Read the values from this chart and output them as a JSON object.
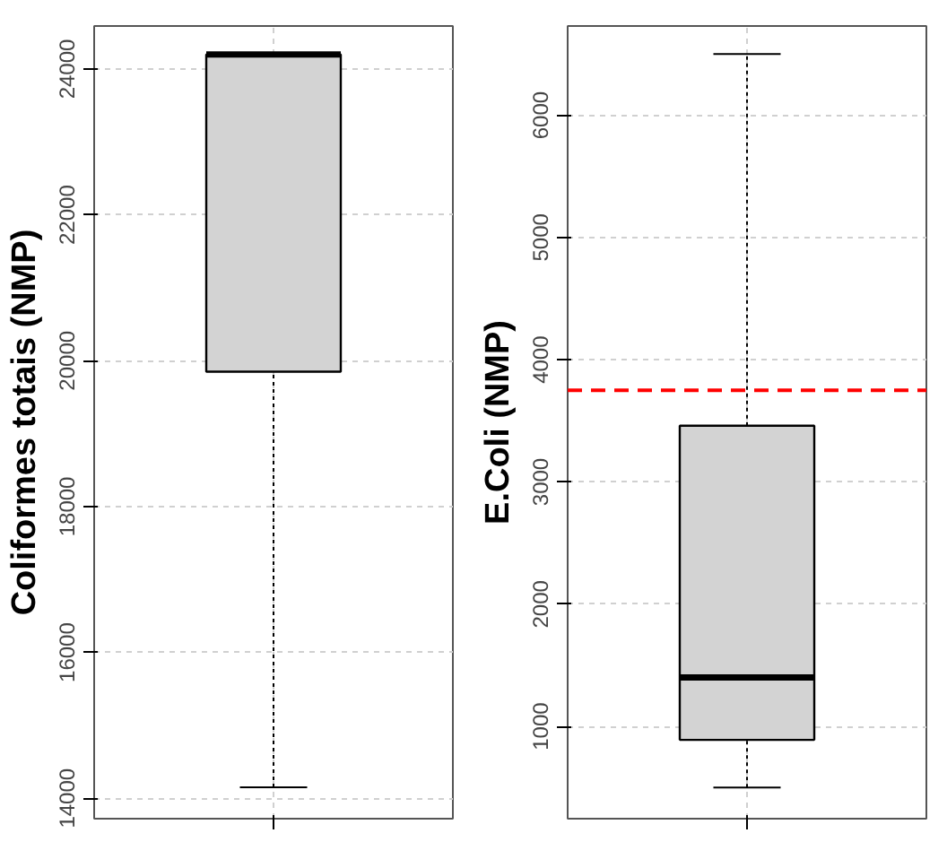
{
  "chart_data": [
    {
      "type": "box",
      "ylabel": "Coliformes totais (NMP)",
      "categories": [
        null
      ],
      "colors": [
        "#d3d3d3"
      ],
      "boxes": [
        {
          "low": 14150,
          "q1": 19850,
          "median": 24200,
          "q3": 24200,
          "high": 24200
        }
      ],
      "ylim": [
        13720,
        24590
      ],
      "yticks": [
        14000,
        16000,
        18000,
        20000,
        22000,
        24000
      ],
      "grid": true,
      "tick_labels": "y"
    },
    {
      "type": "box",
      "ylabel": "E.Coli (NMP)",
      "categories": [
        null
      ],
      "colors": [
        "#d3d3d3"
      ],
      "boxes": [
        {
          "low": 500,
          "q1": 890,
          "median": 1400,
          "q3": 3460,
          "high": 6500
        }
      ],
      "ylim": [
        245,
        6730
      ],
      "yticks": [
        1000,
        2000,
        3000,
        4000,
        5000,
        6000
      ],
      "grid": true,
      "tick_labels": "y",
      "ref_lines": [
        {
          "axis": "y",
          "value": 3750,
          "color": "#ff0000",
          "line_style": "dashed"
        }
      ]
    }
  ]
}
